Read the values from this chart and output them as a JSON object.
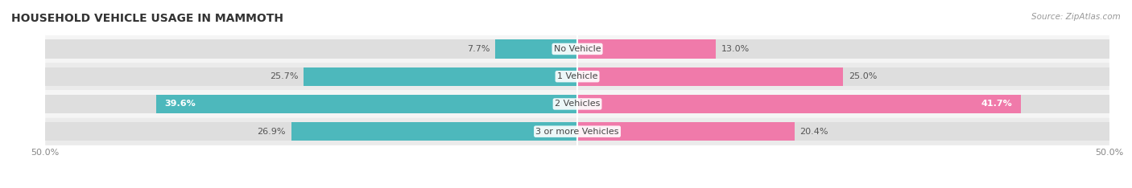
{
  "title": "HOUSEHOLD VEHICLE USAGE IN MAMMOTH",
  "source": "Source: ZipAtlas.com",
  "categories": [
    "No Vehicle",
    "1 Vehicle",
    "2 Vehicles",
    "3 or more Vehicles"
  ],
  "owner_values": [
    7.7,
    25.7,
    39.6,
    26.9
  ],
  "renter_values": [
    13.0,
    25.0,
    41.7,
    20.4
  ],
  "owner_color": "#4db8bc",
  "renter_color": "#f07aaa",
  "owner_light": "#7dd4d6",
  "renter_light": "#f8adc8",
  "row_bg_light": "#f5f5f5",
  "row_bg_dark": "#ebebeb",
  "bar_bg_color": "#dedede",
  "xlim": [
    -50,
    50
  ],
  "title_fontsize": 10,
  "source_fontsize": 7.5,
  "label_fontsize": 8,
  "category_fontsize": 8,
  "legend_fontsize": 8,
  "tick_fontsize": 8
}
